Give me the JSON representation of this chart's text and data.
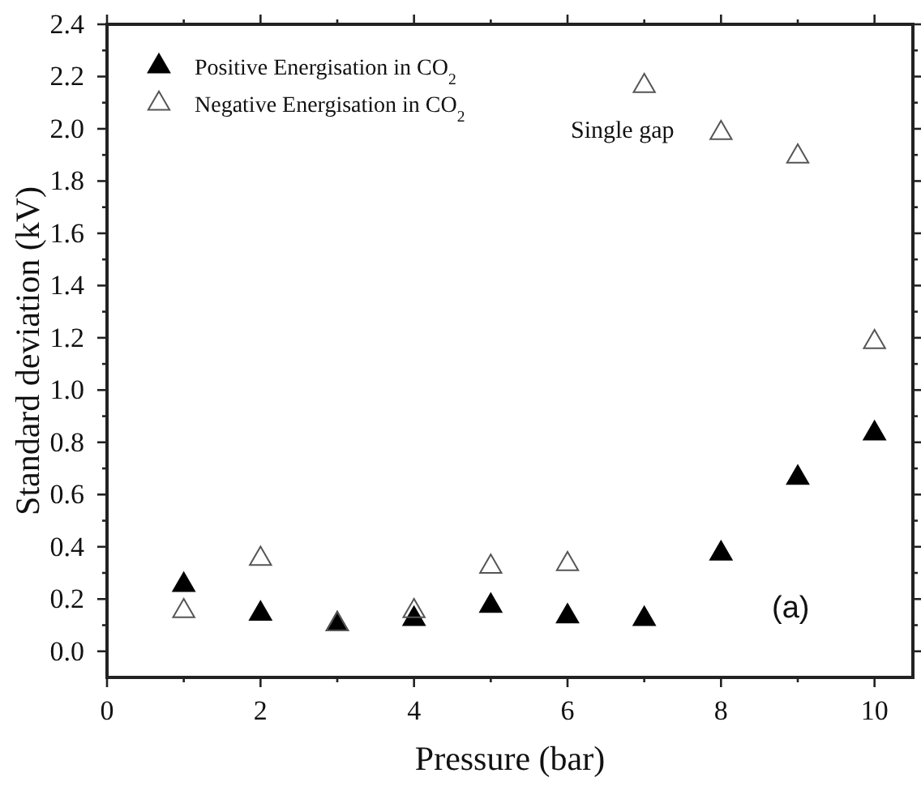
{
  "chart_data": {
    "type": "scatter",
    "xlabel": "Pressure (bar)",
    "ylabel": "Standard deviation (kV)",
    "x": [
      1,
      2,
      3,
      4,
      5,
      6,
      7,
      8,
      9,
      10
    ],
    "series": [
      {
        "name": "Positive Energisation in CO$_{2}$",
        "color": "#000000",
        "values": [
          0.26,
          0.15,
          0.11,
          0.13,
          0.18,
          0.14,
          0.13,
          0.38,
          0.67,
          0.84
        ]
      },
      {
        "name": "Negative Energisation in CO$_{2}$",
        "color": "#555555",
        "values": [
          0.16,
          0.36,
          0.11,
          0.16,
          0.33,
          0.34,
          2.17,
          1.99,
          1.9,
          1.19
        ]
      }
    ],
    "xlim": [
      0,
      10.5
    ],
    "xticks": [
      0,
      2,
      4,
      6,
      8,
      10
    ],
    "ylim": [
      -0.1,
      2.4
    ],
    "yticks": [
      {
        "value": 0,
        "label": "0.0"
      },
      {
        "value": 0.2,
        "label": "0.2"
      },
      {
        "value": 0.4,
        "label": "0.4"
      },
      {
        "value": 0.6,
        "label": "0.6"
      },
      {
        "value": 0.8,
        "label": "0.8"
      },
      {
        "value": 1,
        "label": "1.0"
      },
      {
        "value": 1.2,
        "label": "1.2"
      },
      {
        "value": 1.4,
        "label": "1.4"
      },
      {
        "value": 1.6,
        "label": "1.6"
      },
      {
        "value": 1.8,
        "label": "1.8"
      },
      {
        "value": 2,
        "label": "2.0"
      },
      {
        "value": 2.2,
        "label": "2.2"
      },
      {
        "value": 2.4,
        "label": "2.4"
      }
    ],
    "marker": "triangle",
    "legend": "top left",
    "annotations": [
      "Single gap",
      "(a)"
    ]
  }
}
